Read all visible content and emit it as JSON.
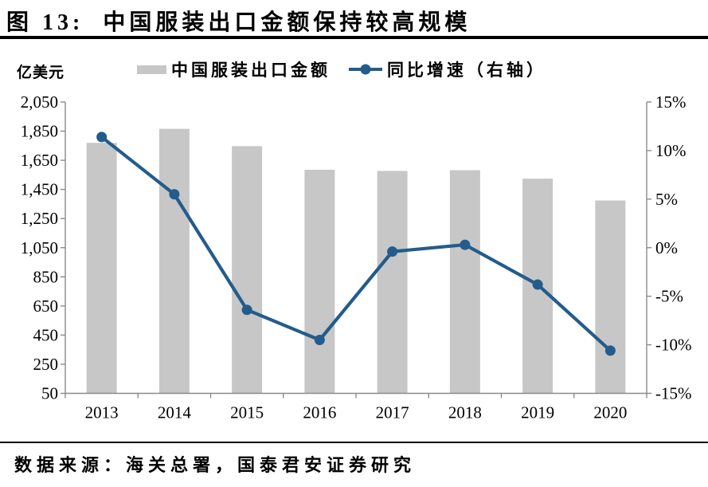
{
  "header": {
    "title": "图 13:  中国服装出口金额保持较高规模"
  },
  "footer": {
    "source": "数据来源：海关总署，国泰君安证券研究"
  },
  "chart_data": {
    "type": "bar",
    "subtype": "combo-bar-line-dual-axis",
    "title": "中国服装出口金额保持较高规模",
    "categories": [
      "2013",
      "2014",
      "2015",
      "2016",
      "2017",
      "2018",
      "2019",
      "2020"
    ],
    "series": [
      {
        "name": "中国服装出口金额",
        "type": "bar",
        "axis": "left",
        "unit": "亿美元",
        "color": "#C7C7C7",
        "values": [
          1770,
          1866,
          1747,
          1585,
          1577,
          1582,
          1524,
          1374
        ]
      },
      {
        "name": "同比增速（右轴）",
        "type": "line",
        "axis": "right",
        "unit": "%",
        "color": "#235C8C",
        "values": [
          11.4,
          5.5,
          -6.4,
          -9.5,
          -0.4,
          0.3,
          -3.8,
          -10.6
        ]
      }
    ],
    "left_axis": {
      "label": "亿美元",
      "min": 50,
      "max": 2050,
      "step": 200,
      "ticks": [
        "2,050",
        "1,850",
        "1,650",
        "1,450",
        "1,250",
        "1,050",
        "850",
        "650",
        "450",
        "250",
        "50"
      ]
    },
    "right_axis": {
      "min": -15,
      "max": 15,
      "step": 5,
      "suffix": "%",
      "ticks": [
        "15%",
        "10%",
        "5%",
        "0%",
        "-5%",
        "-10%",
        "-15%"
      ]
    },
    "legend_position": "top",
    "grid": false,
    "axis_color": "#8A8A8A"
  }
}
